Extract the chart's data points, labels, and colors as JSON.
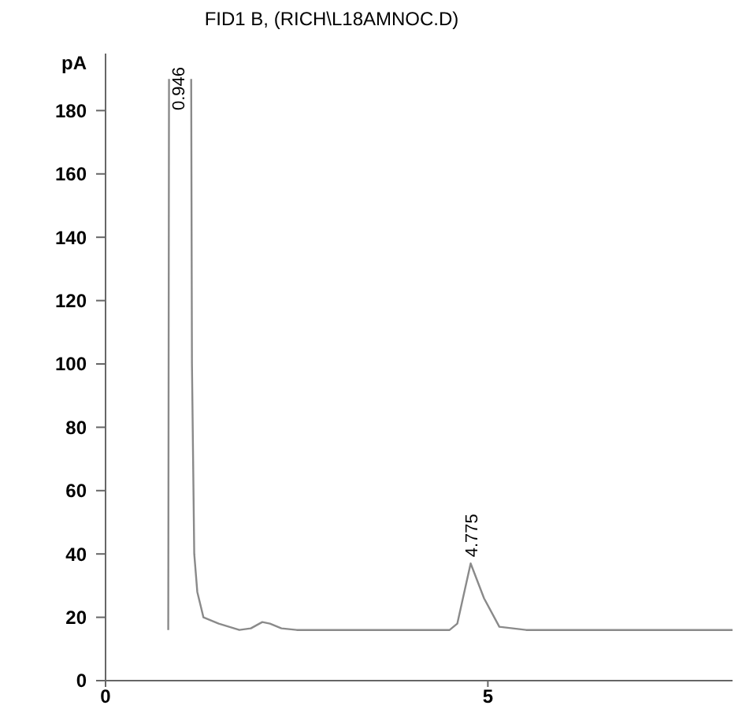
{
  "chart_data": {
    "type": "line",
    "title": "FID1 B, (RICH\\L18AMNOC.D)",
    "ylabel": "pA",
    "x": [
      0.82,
      0.83,
      0.946,
      1.12,
      1.13,
      1.16,
      1.2,
      1.28,
      1.48,
      1.75,
      1.9,
      2.05,
      2.15,
      2.3,
      2.5,
      4.5,
      4.6,
      4.775,
      4.95,
      5.15,
      5.5,
      8.2
    ],
    "series": [
      {
        "color": "#8a8a8a",
        "values": [
          16,
          190,
          null,
          190,
          100,
          40,
          28,
          20,
          18,
          16,
          16.5,
          18.5,
          18,
          16.5,
          16,
          16,
          18,
          37,
          26,
          17,
          16,
          16
        ]
      }
    ],
    "xlim": [
      0,
      8.2
    ],
    "ylim": [
      0,
      198
    ],
    "xticks": [
      0,
      5
    ],
    "yticks": [
      0,
      20,
      40,
      60,
      80,
      100,
      120,
      140,
      160,
      180
    ],
    "grid": false,
    "line_style": "solid",
    "annotations": [
      "0.946",
      {
        "text": "4.775",
        "x": 4.775,
        "y": 37
      }
    ]
  }
}
